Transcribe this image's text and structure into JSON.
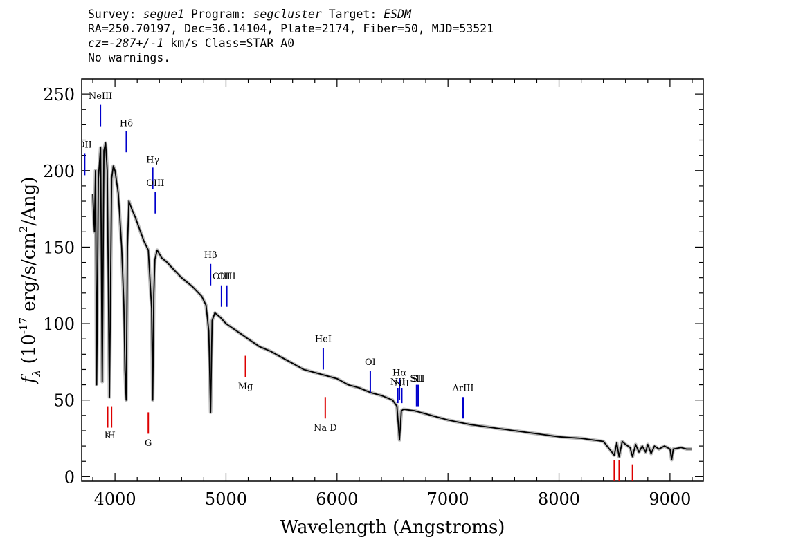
{
  "header": {
    "line1": {
      "survey_label": "Survey:",
      "survey_value": "segue1",
      "program_label": "Program:",
      "program_value": "segcluster",
      "target_label": "Target:",
      "target_value": "ESDM"
    },
    "line2": "RA=250.70197, Dec=36.14104, Plate=2174, Fiber=50, MJD=53521",
    "line3": {
      "cz_label": "cz=",
      "cz_value": "-287+/-1",
      "cz_unit": "km/s",
      "class": "Class=STAR A0"
    },
    "line4": "No warnings."
  },
  "chart_data": {
    "type": "line",
    "xlabel": "Wavelength (Angstroms)",
    "ylabel_prefix": "f",
    "ylabel_sub": "λ",
    "ylabel_main": " (10",
    "ylabel_exp": "-17",
    "ylabel_units": " erg/s/cm",
    "ylabel_exp2": "2",
    "ylabel_tail": "/Ang)",
    "xlim": [
      3700,
      9300
    ],
    "ylim": [
      -3,
      260
    ],
    "x_ticks": [
      "4000",
      "5000",
      "6000",
      "7000",
      "8000",
      "9000"
    ],
    "y_ticks": [
      "0",
      "50",
      "100",
      "150",
      "200",
      "250"
    ],
    "x_tick_values": [
      4000,
      5000,
      6000,
      7000,
      8000,
      9000
    ],
    "y_tick_values": [
      0,
      50,
      100,
      150,
      200,
      250
    ],
    "colors": {
      "spectrum": "#000000",
      "error": "#bbbbbb",
      "emission": "#0000cc",
      "absorption": "#dd0000"
    },
    "series": [
      {
        "x": [
          3800,
          3815,
          3825,
          3835,
          3850,
          3870,
          3885,
          3900,
          3915,
          3930,
          3950,
          3970,
          3985,
          4000,
          4030,
          4060,
          4080,
          4090,
          4101,
          4112,
          4125,
          4150,
          4180,
          4220,
          4260,
          4300,
          4330,
          4340,
          4350,
          4360,
          4380,
          4420,
          4470,
          4520,
          4600,
          4700,
          4780,
          4820,
          4845,
          4861,
          4875,
          4900,
          4950,
          5000,
          5100,
          5200,
          5300,
          5400,
          5500,
          5600,
          5700,
          5800,
          5900,
          6000,
          6100,
          6200,
          6300,
          6400,
          6500,
          6540,
          6563,
          6580,
          6600,
          6700,
          6800,
          6900,
          7000,
          7200,
          7400,
          7600,
          7800,
          8000,
          8200,
          8400,
          8498,
          8520,
          8542,
          8570,
          8600,
          8640,
          8662,
          8690,
          8720,
          8750,
          8780,
          8800,
          8830,
          8860,
          8900,
          8950,
          9000,
          9015,
          9030,
          9100,
          9150,
          9200
        ],
        "y": [
          185,
          160,
          200,
          60,
          195,
          215,
          62,
          213,
          218,
          200,
          52,
          195,
          203,
          200,
          185,
          150,
          112,
          70,
          50,
          150,
          180,
          175,
          170,
          162,
          154,
          148,
          110,
          50,
          120,
          142,
          148,
          143,
          140,
          136,
          130,
          124,
          118,
          112,
          95,
          42,
          102,
          107,
          104,
          100,
          95,
          90,
          85,
          82,
          78,
          74,
          70,
          68,
          66,
          64,
          60,
          58,
          55,
          53,
          50,
          46,
          24,
          43,
          44,
          43,
          41,
          39,
          37,
          34,
          32,
          30,
          28,
          26,
          25,
          23,
          14,
          22,
          13,
          23,
          21,
          19,
          13,
          21,
          16,
          20,
          16,
          21,
          15,
          20,
          18,
          20,
          18,
          11,
          18,
          19,
          18,
          18
        ]
      }
    ],
    "emission_lines": [
      {
        "label": "OII",
        "wavelength": 3727,
        "label_y": 215,
        "bar": [
          197,
          211
        ]
      },
      {
        "label": "NeIII",
        "wavelength": 3869,
        "label_y": 247,
        "bar": [
          229,
          243
        ]
      },
      {
        "label": "Hδ",
        "wavelength": 4102,
        "label_y": 229,
        "bar": [
          212,
          226
        ]
      },
      {
        "label": "Hγ",
        "wavelength": 4340,
        "label_y": 205,
        "bar": [
          188,
          202
        ]
      },
      {
        "label": "OIII",
        "wavelength": 4363,
        "label_y": 190,
        "bar": [
          172,
          186
        ]
      },
      {
        "label": "Hβ",
        "wavelength": 4861,
        "label_y": 143,
        "bar": [
          125,
          139
        ]
      },
      {
        "label": "OIII",
        "wavelength": 4959,
        "label_y": 129,
        "bar": [
          111,
          125
        ]
      },
      {
        "label": "OIII",
        "wavelength": 5007,
        "label_y": 129,
        "bar": [
          111,
          125
        ]
      },
      {
        "label": "HeI",
        "wavelength": 5876,
        "label_y": 88,
        "bar": [
          70,
          84
        ]
      },
      {
        "label": "OI",
        "wavelength": 6300,
        "label_y": 73,
        "bar": [
          55,
          69
        ]
      },
      {
        "label": "NII",
        "wavelength": 6548,
        "label_y": 60,
        "bar": [
          48,
          58
        ]
      },
      {
        "label": "Hα",
        "wavelength": 6563,
        "label_y": 66,
        "bar": [
          50,
          64
        ]
      },
      {
        "label": "NII",
        "wavelength": 6584,
        "label_y": 59,
        "bar": [
          48,
          58
        ]
      },
      {
        "label": "SII",
        "wavelength": 6717,
        "label_y": 62,
        "bar": [
          46,
          60
        ]
      },
      {
        "label": "SII",
        "wavelength": 6731,
        "label_y": 62,
        "bar": [
          46,
          60
        ]
      },
      {
        "label": "ArIII",
        "wavelength": 7136,
        "label_y": 56,
        "bar": [
          38,
          52
        ]
      }
    ],
    "absorption_lines": [
      {
        "label": "Mg",
        "wavelength": 5175,
        "label_y": 57,
        "bar": [
          65,
          79
        ]
      },
      {
        "label": "Na  D",
        "wavelength": 5894,
        "label_y": 30,
        "bar": [
          38,
          52
        ]
      },
      {
        "label": "K",
        "wavelength": 3934,
        "label_y": 25,
        "bar": [
          32,
          46
        ]
      },
      {
        "label": "H",
        "wavelength": 3969,
        "label_y": 25,
        "bar": [
          32,
          46
        ]
      },
      {
        "label": "G",
        "wavelength": 4300,
        "label_y": 20,
        "bar": [
          28,
          42
        ]
      },
      {
        "label": "",
        "wavelength": 8498,
        "label_y": 0,
        "bar": [
          -3,
          11
        ]
      },
      {
        "label": "",
        "wavelength": 8542,
        "label_y": 0,
        "bar": [
          -3,
          11
        ]
      },
      {
        "label": "",
        "wavelength": 8662,
        "label_y": 0,
        "bar": [
          -3,
          8
        ]
      }
    ]
  }
}
